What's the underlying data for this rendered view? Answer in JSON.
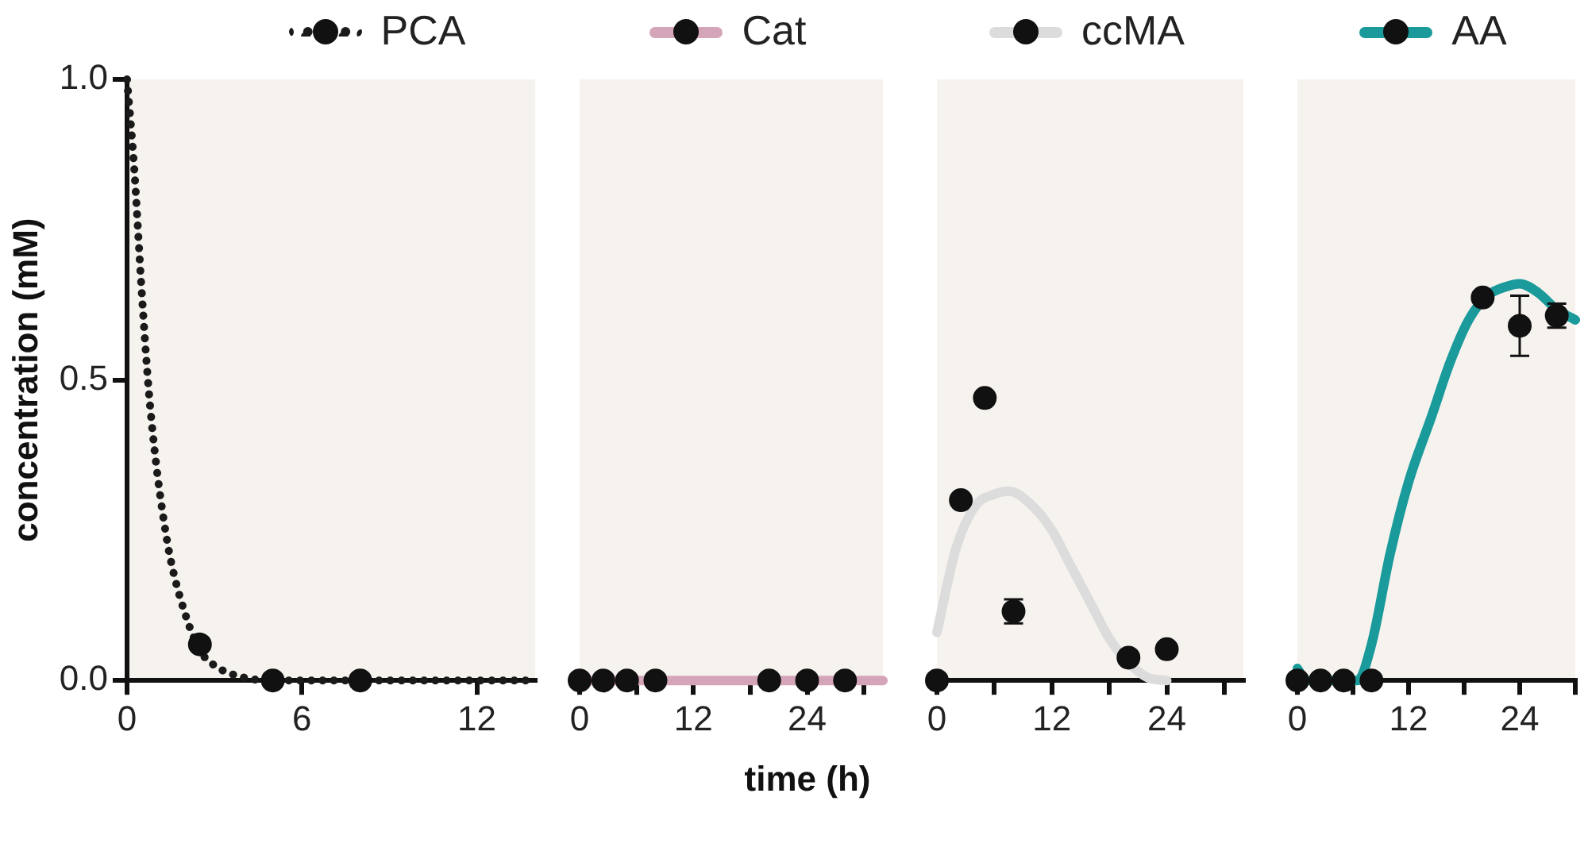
{
  "chart_data": [
    {
      "type": "line",
      "legend": "top",
      "ylabel": "concentration (mM)",
      "xlim": [
        0,
        14
      ],
      "xticks": [
        0,
        6,
        12
      ],
      "ylim": [
        0,
        1
      ],
      "yticks": [
        {
          "value": 0,
          "label": "0.0"
        },
        {
          "value": 0.5,
          "label": "0.5"
        },
        {
          "value": 1,
          "label": "1.0"
        }
      ],
      "series": [
        {
          "name": "PCA",
          "type": "line",
          "color": "#1a1a1a",
          "line_style": "dotted",
          "marker": "none",
          "x": [
            0,
            0.25,
            0.5,
            0.75,
            1,
            1.25,
            1.5,
            2,
            2.5,
            3,
            4,
            5,
            8,
            14
          ],
          "values": [
            1.0,
            0.85,
            0.65,
            0.48,
            0.36,
            0.27,
            0.2,
            0.11,
            0.05,
            0.025,
            0.005,
            0,
            0,
            0
          ]
        },
        {
          "type": "scatter",
          "color": "#111111",
          "marker": "circle",
          "x": [
            2.5,
            5,
            8
          ],
          "values": [
            0.06,
            0,
            0
          ]
        }
      ]
    },
    {
      "type": "line",
      "legend": "top",
      "tick_labels": "x",
      "xlabel": "time (h)",
      "xlim": [
        0,
        32
      ],
      "xticks": [
        0,
        {
          "value": 6,
          "label": null
        },
        12,
        {
          "value": 18,
          "label": null
        },
        24,
        {
          "value": 30,
          "label": null
        }
      ],
      "ylim": [
        0,
        1
      ],
      "series": [
        {
          "name": "Cat",
          "type": "line",
          "color": "#d4a5b8",
          "line_style": "solid",
          "marker": "none",
          "x": [
            0,
            32
          ],
          "values": [
            0,
            0
          ]
        },
        {
          "type": "scatter",
          "color": "#111111",
          "marker": "circle",
          "x": [
            0,
            2.5,
            5,
            8,
            20,
            24,
            28
          ],
          "values": [
            0,
            0,
            0,
            0,
            0,
            0,
            0
          ]
        }
      ]
    },
    {
      "type": "line",
      "legend": "top",
      "tick_labels": "x",
      "xlim": [
        0,
        32
      ],
      "xticks": [
        0,
        {
          "value": 6,
          "label": null
        },
        12,
        {
          "value": 18,
          "label": null
        },
        24,
        {
          "value": 30,
          "label": null
        }
      ],
      "ylim": [
        0,
        1
      ],
      "series": [
        {
          "name": "ccMA",
          "type": "line",
          "color": "#dcdcdc",
          "line_style": "solid",
          "marker": "none",
          "x": [
            0,
            2,
            4,
            6,
            7.5,
            10,
            12,
            14,
            16,
            18,
            20,
            22,
            24
          ],
          "values": [
            0.08,
            0.22,
            0.29,
            0.31,
            0.315,
            0.29,
            0.25,
            0.19,
            0.13,
            0.07,
            0.03,
            0.005,
            0
          ]
        },
        {
          "type": "scatter",
          "color": "#111111",
          "marker": "circle",
          "x": [
            0,
            2.5,
            5,
            8,
            20,
            24
          ],
          "values": [
            0,
            0.3,
            0.47,
            0.115,
            0.038,
            0.052
          ],
          "errors": [
            null,
            null,
            null,
            0.02,
            null,
            null
          ]
        }
      ]
    },
    {
      "type": "line",
      "legend": "top",
      "tick_labels": "x",
      "xlim": [
        0,
        30
      ],
      "xticks": [
        0,
        {
          "value": 6,
          "label": null
        },
        12,
        {
          "value": 18,
          "label": null
        },
        24,
        {
          "value": 30,
          "label": null
        }
      ],
      "ylim": [
        0,
        1
      ],
      "series": [
        {
          "name": "AA",
          "type": "line",
          "color": "#1a9a9a",
          "line_style": "solid",
          "marker": "none",
          "x": [
            0,
            1,
            3,
            6.5,
            8,
            10,
            12,
            14.5,
            16.5,
            18.5,
            20.5,
            22.5,
            24,
            26,
            28,
            30
          ],
          "values": [
            0.02,
            0,
            0,
            0,
            0.06,
            0.21,
            0.33,
            0.44,
            0.53,
            0.6,
            0.64,
            0.655,
            0.66,
            0.645,
            0.617,
            0.6
          ]
        },
        {
          "type": "scatter",
          "color": "#111111",
          "marker": "circle",
          "x": [
            0,
            2.5,
            5,
            8,
            20,
            24,
            28
          ],
          "values": [
            0,
            0,
            0,
            0,
            0.637,
            0.59,
            0.607
          ],
          "errors": [
            null,
            null,
            null,
            null,
            null,
            0.05,
            0.02
          ]
        }
      ]
    }
  ]
}
